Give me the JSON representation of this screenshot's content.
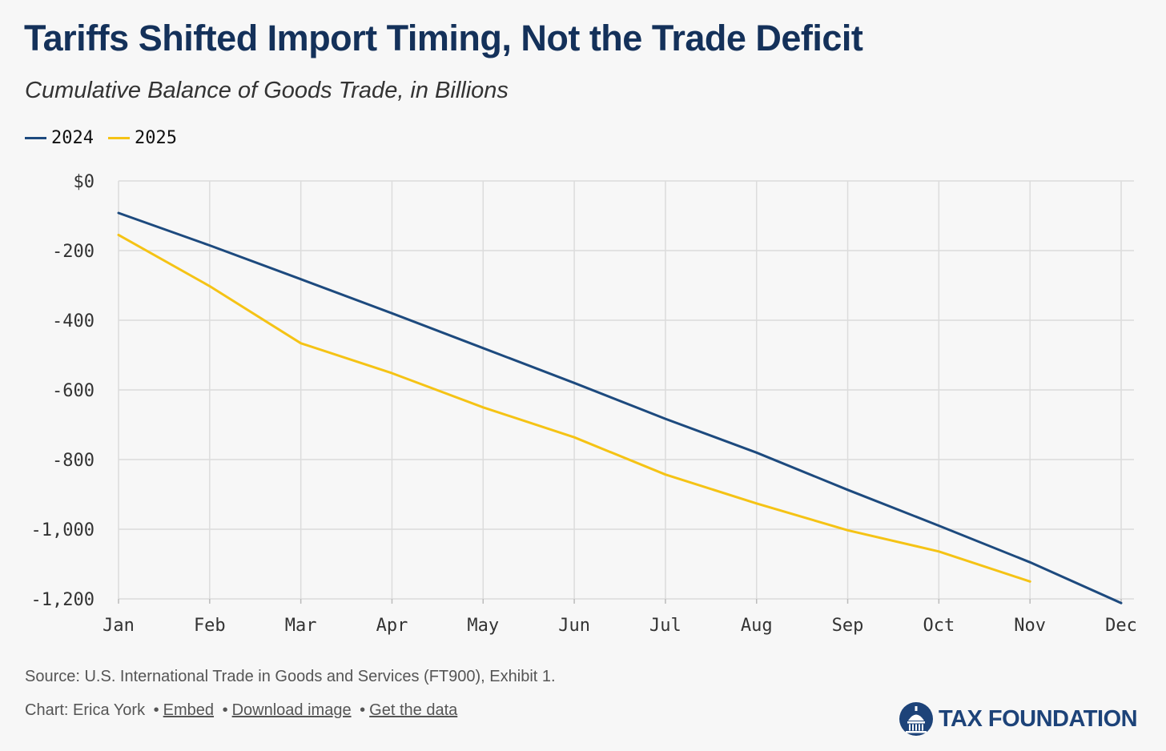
{
  "title": "Tariffs Shifted Import Timing, Not the Trade Deficit",
  "subtitle": "Cumulative Balance of Goods Trade, in Billions",
  "colors": {
    "series_2024": "#1d4a7e",
    "series_2025": "#f5c315",
    "title": "#14315a",
    "grid": "#dcdcdc"
  },
  "chart_data": {
    "type": "line",
    "categories": [
      "Jan",
      "Feb",
      "Mar",
      "Apr",
      "May",
      "Jun",
      "Jul",
      "Aug",
      "Sep",
      "Oct",
      "Nov",
      "Dec"
    ],
    "series": [
      {
        "name": "2024",
        "values": [
          -92,
          -185,
          -282,
          -380,
          -480,
          -580,
          -683,
          -780,
          -887,
          -990,
          -1095,
          -1212
        ]
      },
      {
        "name": "2025",
        "values": [
          -155,
          -302,
          -466,
          -552,
          -650,
          -736,
          -843,
          -926,
          -1003,
          -1064,
          -1150,
          null
        ]
      }
    ],
    "y_ticks": [
      0,
      -200,
      -400,
      -600,
      -800,
      -1000,
      -1200
    ],
    "y_tick_labels": [
      "$0",
      "-200",
      "-400",
      "-600",
      "-800",
      "-1,000",
      "-1,200"
    ],
    "ylim": [
      -1200,
      0
    ],
    "grid": true,
    "legend_position": "top-left"
  },
  "footer": {
    "source": "Source: U.S. International Trade in Goods and Services (FT900), Exhibit 1.",
    "chart_credit": "Chart: Erica York",
    "embed": "Embed",
    "download": "Download image",
    "get_data": "Get the data",
    "separator": "•"
  },
  "logo": {
    "text": "TAX FOUNDATION",
    "icon": "capitol-dome-icon"
  }
}
